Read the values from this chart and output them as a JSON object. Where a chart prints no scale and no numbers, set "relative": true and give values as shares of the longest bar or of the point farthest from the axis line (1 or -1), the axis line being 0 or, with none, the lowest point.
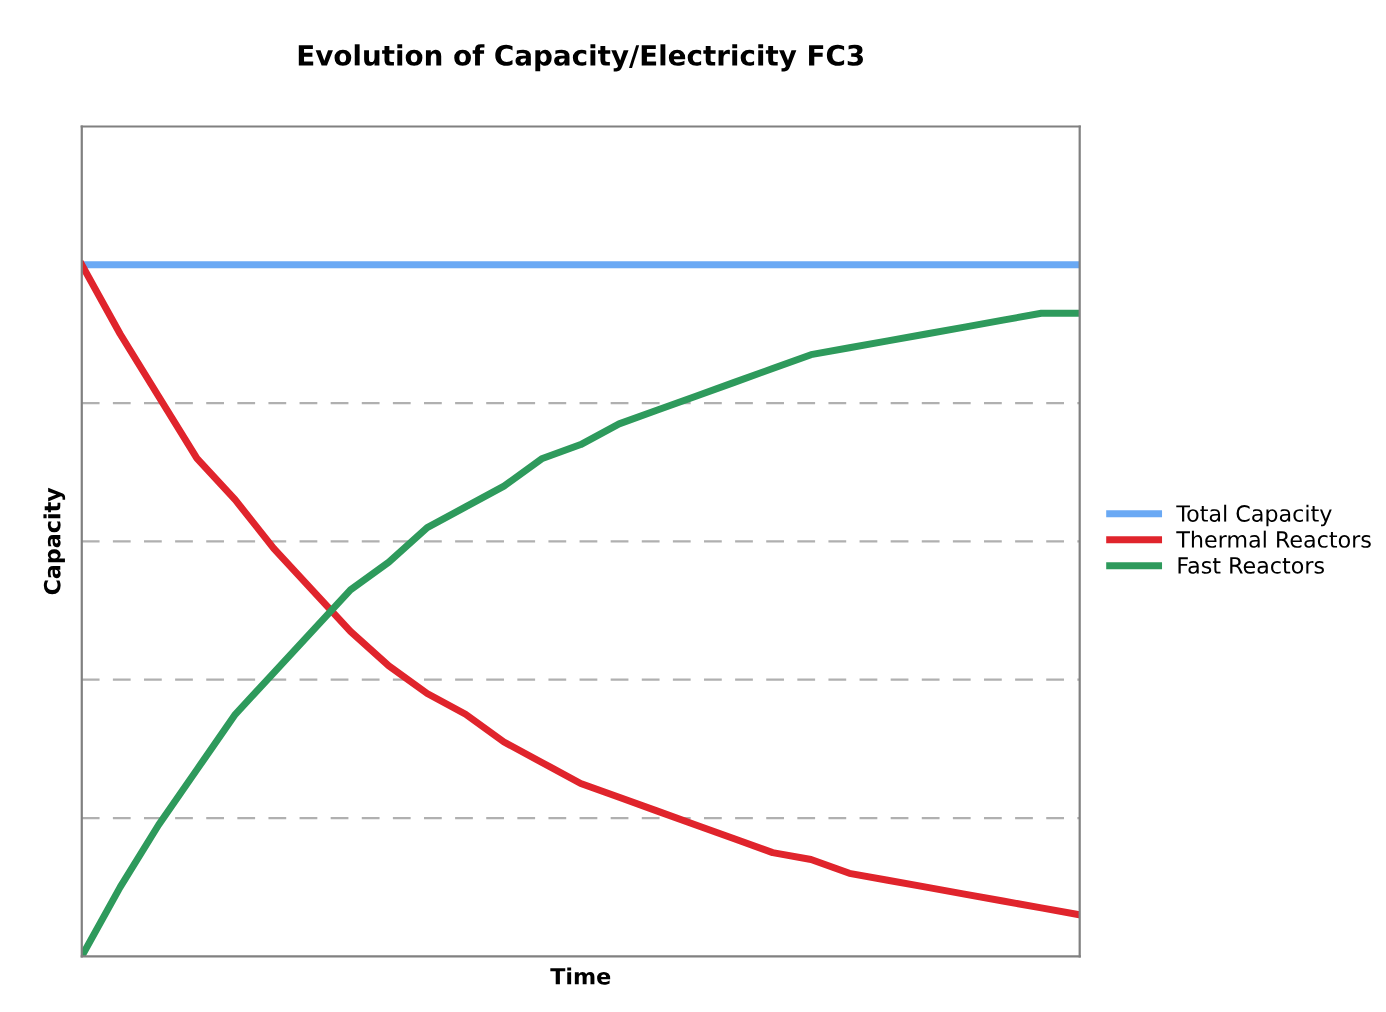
{
  "chart_data": {
    "type": "line",
    "title": "Evolution of Capacity/Electricity FC3",
    "xlabel": "Time",
    "ylabel": "Capacity",
    "relative": true,
    "grid": "y",
    "legend": "right",
    "tick_labels": false,
    "line_style": "solid",
    "categories": [
      null,
      null,
      null,
      null,
      null,
      null,
      null,
      null,
      null,
      null,
      null,
      null,
      null,
      null,
      null,
      null,
      null,
      null,
      null,
      null,
      null,
      null,
      null,
      null,
      null,
      null,
      null
    ],
    "series": [
      {
        "name": "Total Capacity",
        "color": "#6aa9f4",
        "values": [
          1,
          1,
          1,
          1,
          1,
          1,
          1,
          1,
          1,
          1,
          1,
          1,
          1,
          1,
          1,
          1,
          1,
          1,
          1,
          1,
          1,
          1,
          1,
          1,
          1,
          1,
          1
        ]
      },
      {
        "name": "Thermal Reactors",
        "color": "#e0242c",
        "values": [
          1,
          0.9,
          0.81,
          0.72,
          0.66,
          0.59,
          0.53,
          0.47,
          0.42,
          0.38,
          0.35,
          0.31,
          0.28,
          0.25,
          0.23,
          0.21,
          0.19,
          0.17,
          0.15,
          0.14,
          0.12,
          0.11,
          0.1,
          0.09,
          0.08,
          0.07,
          0.06
        ]
      },
      {
        "name": "Fast Reactors",
        "color": "#2e9a5c",
        "values": [
          0,
          0.1,
          0.19,
          0.27,
          0.35,
          0.41,
          0.47,
          0.53,
          0.57,
          0.62,
          0.65,
          0.68,
          0.72,
          0.74,
          0.77,
          0.79,
          0.81,
          0.83,
          0.85,
          0.87,
          0.88,
          0.89,
          0.9,
          0.91,
          0.92,
          0.93,
          0.93
        ]
      }
    ]
  }
}
